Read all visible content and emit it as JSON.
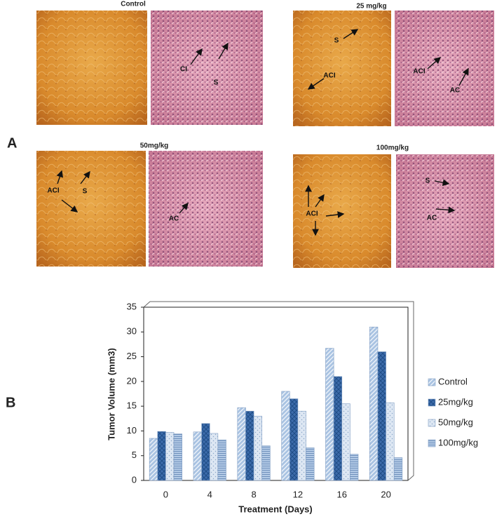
{
  "figure": {
    "panel_a_label": "A",
    "panel_b_label": "B",
    "groups": [
      {
        "title": "Control",
        "annotations": [
          "CI",
          "S"
        ]
      },
      {
        "title": "25 mg/kg",
        "annotations": [
          "S",
          "ACI",
          "ACI",
          "AC"
        ]
      },
      {
        "title": "50mg/kg",
        "annotations": [
          "ACI",
          "S",
          "AC"
        ]
      },
      {
        "title": "100mg/kg",
        "annotations": [
          "ACI",
          "S",
          "AC"
        ]
      }
    ]
  },
  "chart_data": {
    "type": "bar",
    "y_label": "Tumor Volume (mm3)",
    "x_label": "Treatment (Days)",
    "categories": [
      "0",
      "4",
      "8",
      "12",
      "16",
      "20"
    ],
    "series": [
      {
        "name": "Control",
        "color": "#a9c3e2",
        "values": [
          8.5,
          9.8,
          14.7,
          18,
          26.7,
          31
        ]
      },
      {
        "name": "25mg/kg",
        "color": "#3d6cab",
        "values": [
          9.9,
          11.5,
          14,
          16.5,
          21,
          26
        ]
      },
      {
        "name": "50mg/kg",
        "color": "#dde7f3",
        "values": [
          9.7,
          9.5,
          13,
          14,
          15.5,
          15.7
        ]
      },
      {
        "name": "100mg/kg",
        "color": "#b3cae6",
        "values": [
          9.4,
          8.2,
          7,
          6.6,
          5.3,
          4.6
        ]
      }
    ],
    "ylim": [
      0,
      35
    ],
    "yticks": [
      0,
      5,
      10,
      15,
      20,
      25,
      30,
      35
    ],
    "grid": false
  }
}
